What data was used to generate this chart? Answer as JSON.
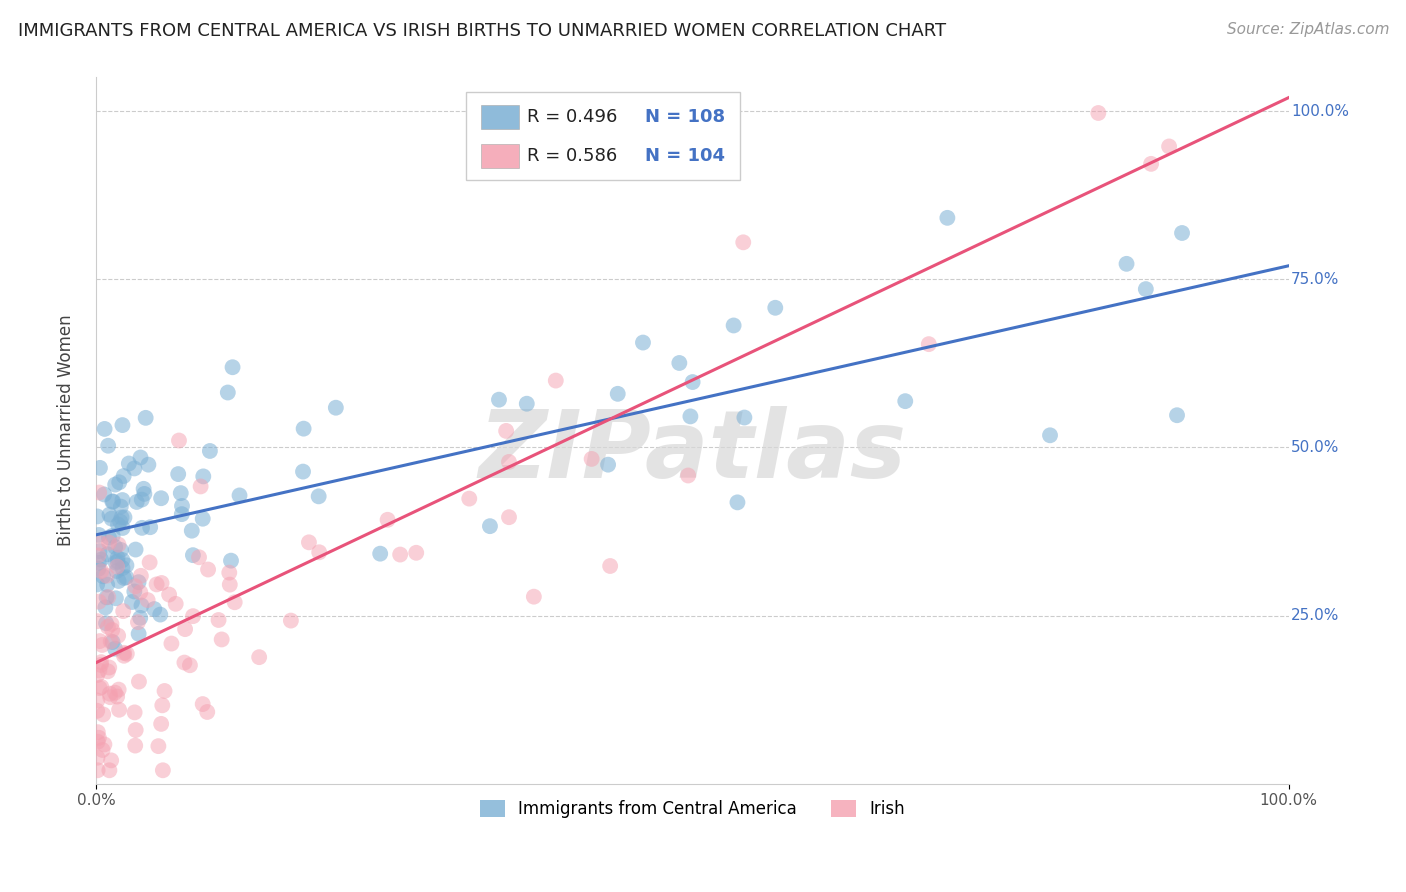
{
  "title": "IMMIGRANTS FROM CENTRAL AMERICA VS IRISH BIRTHS TO UNMARRIED WOMEN CORRELATION CHART",
  "source": "Source: ZipAtlas.com",
  "ylabel": "Births to Unmarried Women",
  "blue_label": "Immigrants from Central America",
  "pink_label": "Irish",
  "blue_R": 0.496,
  "blue_N": 108,
  "pink_R": 0.586,
  "pink_N": 104,
  "blue_color": "#7BAFD4",
  "pink_color": "#F4A0B0",
  "blue_line_color": "#4472C4",
  "pink_line_color": "#E8537A",
  "watermark": "ZIPatlas",
  "background_color": "#FFFFFF",
  "grid_color": "#CCCCCC",
  "title_fontsize": 13,
  "tick_fontsize": 11,
  "source_fontsize": 11,
  "ylabel_fontsize": 12,
  "yaxis_label_color": "#4472C4"
}
